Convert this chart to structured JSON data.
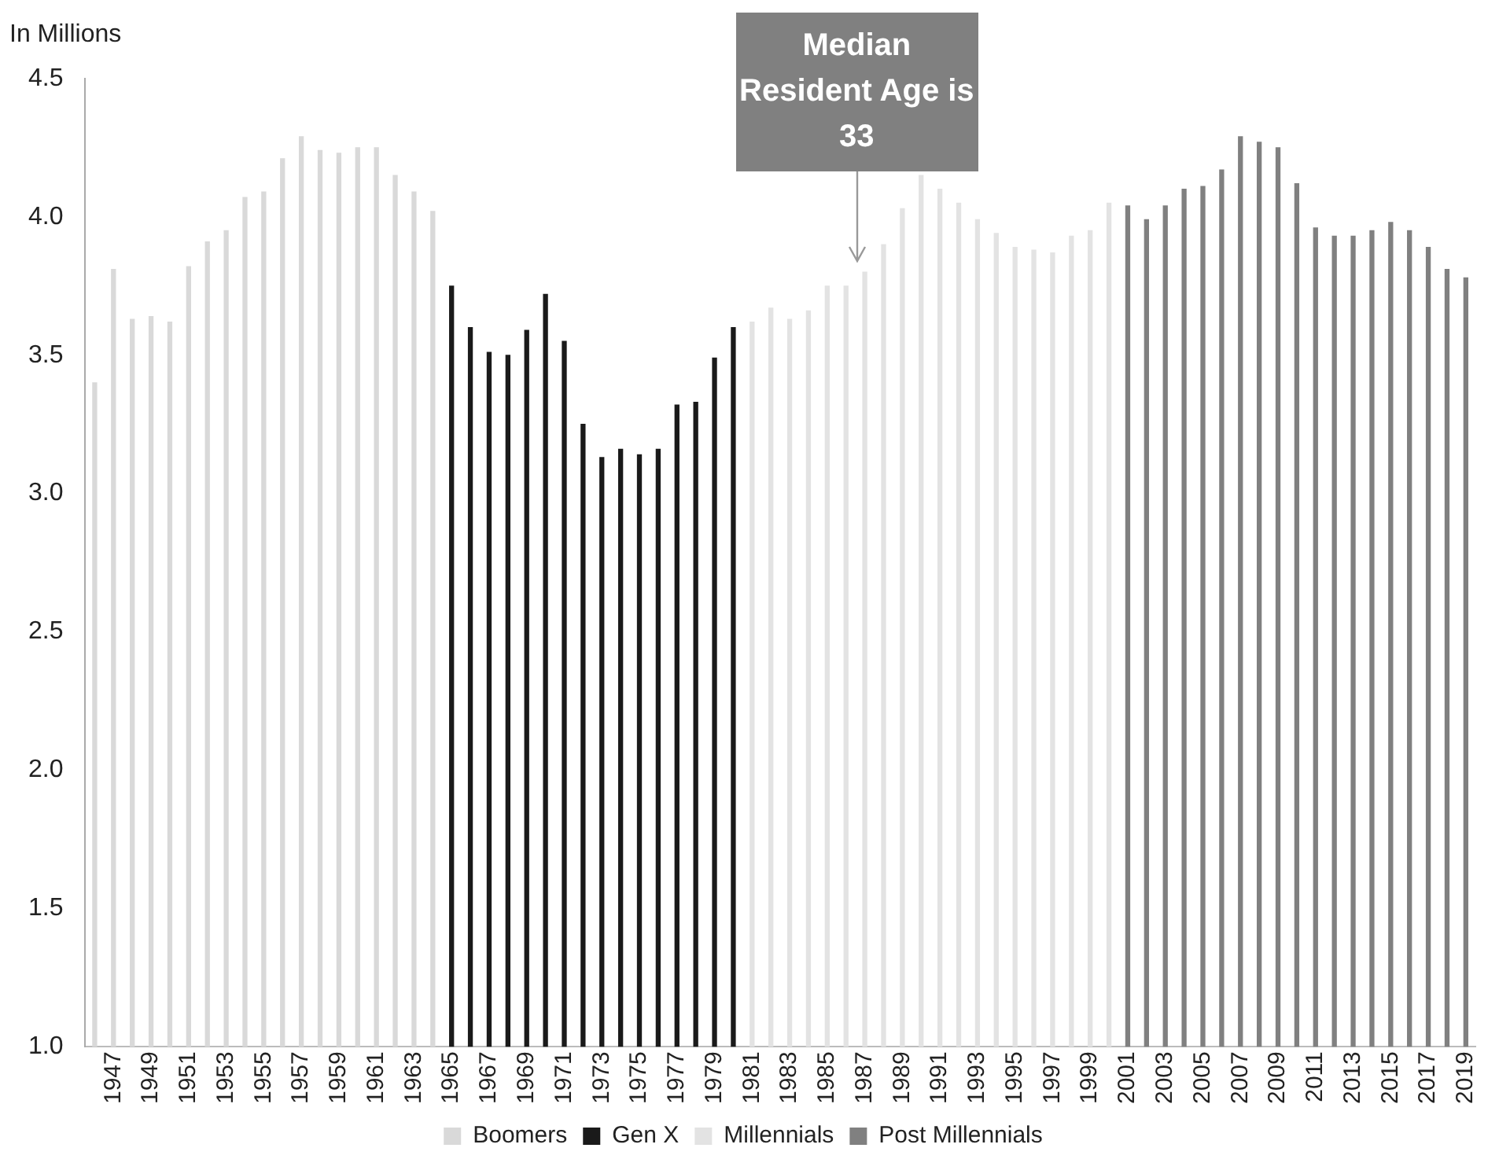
{
  "chart_data": {
    "type": "bar",
    "stacked": true,
    "ylabel": "In Millions",
    "legend": "bottom",
    "grid": false,
    "annotations": [
      "Median Resident Age is 33"
    ],
    "ylim": [
      1.0,
      4.5
    ],
    "yticks": [
      {
        "value": 1,
        "label": "1.0"
      },
      {
        "value": 1.5,
        "label": "1.5"
      },
      {
        "value": 2,
        "label": "2.0"
      },
      {
        "value": 2.5,
        "label": "2.5"
      },
      {
        "value": 3,
        "label": "3.0"
      },
      {
        "value": 3.5,
        "label": "3.5"
      },
      {
        "value": 4,
        "label": "4.0"
      },
      {
        "value": 4.5,
        "label": "4.5"
      }
    ],
    "categories": [
      null,
      "1947",
      null,
      "1949",
      null,
      "1951",
      null,
      "1953",
      null,
      "1955",
      null,
      "1957",
      null,
      "1959",
      null,
      "1961",
      null,
      "1963",
      null,
      "1965",
      null,
      "1967",
      null,
      "1969",
      null,
      "1971",
      null,
      "1973",
      null,
      "1975",
      null,
      "1977",
      null,
      "1979",
      null,
      "1981",
      null,
      "1983",
      null,
      "1985",
      null,
      "1987",
      null,
      "1989",
      null,
      "1991",
      null,
      "1993",
      null,
      "1995",
      null,
      "1997",
      null,
      "1999",
      null,
      "2001",
      null,
      "2003",
      null,
      "2005",
      null,
      "2007",
      null,
      "2009",
      null,
      "2011",
      null,
      "2013",
      null,
      "2015",
      null,
      "2017",
      null,
      "2019"
    ],
    "series": [
      {
        "name": "Boomers",
        "color": "#d9d9d9",
        "values": [
          3.4,
          3.81,
          3.63,
          3.64,
          3.62,
          3.82,
          3.91,
          3.95,
          4.07,
          4.09,
          4.21,
          4.29,
          4.24,
          4.23,
          4.25,
          4.25,
          4.15,
          4.09,
          4.02,
          null,
          null,
          null,
          null,
          null,
          null,
          null,
          null,
          null,
          null,
          null,
          null,
          null,
          null,
          null,
          null,
          null,
          null,
          null,
          null,
          null,
          null,
          null,
          null,
          null,
          null,
          null,
          null,
          null,
          null,
          null,
          null,
          null,
          null,
          null,
          null,
          null,
          null,
          null,
          null,
          null,
          null,
          null,
          null,
          null,
          null,
          null,
          null,
          null,
          null,
          null,
          null,
          null,
          null,
          null
        ]
      },
      {
        "name": "Gen X",
        "color": "#1a1a1a",
        "values": [
          null,
          null,
          null,
          null,
          null,
          null,
          null,
          null,
          null,
          null,
          null,
          null,
          null,
          null,
          null,
          null,
          null,
          null,
          null,
          3.75,
          3.6,
          3.51,
          3.5,
          3.59,
          3.72,
          3.55,
          3.25,
          3.13,
          3.16,
          3.14,
          3.16,
          3.32,
          3.33,
          3.49,
          3.6,
          null,
          null,
          null,
          null,
          null,
          null,
          null,
          null,
          null,
          null,
          null,
          null,
          null,
          null,
          null,
          null,
          null,
          null,
          null,
          null,
          null,
          null,
          null,
          null,
          null,
          null,
          null,
          null,
          null,
          null,
          null,
          null,
          null,
          null,
          null,
          null,
          null,
          null,
          null
        ]
      },
      {
        "name": "Millennials",
        "color": "#e3e3e3",
        "values": [
          null,
          null,
          null,
          null,
          null,
          null,
          null,
          null,
          null,
          null,
          null,
          null,
          null,
          null,
          null,
          null,
          null,
          null,
          null,
          null,
          null,
          null,
          null,
          null,
          null,
          null,
          null,
          null,
          null,
          null,
          null,
          null,
          null,
          null,
          null,
          3.62,
          3.67,
          3.63,
          3.66,
          3.75,
          3.75,
          3.8,
          3.9,
          4.03,
          4.15,
          4.1,
          4.05,
          3.99,
          3.94,
          3.89,
          3.88,
          3.87,
          3.93,
          3.95,
          4.05,
          null,
          null,
          null,
          null,
          null,
          null,
          null,
          null,
          null,
          null,
          null,
          null,
          null,
          null,
          null,
          null,
          null,
          null,
          null
        ]
      },
      {
        "name": "Post Millennials",
        "color": "#808080",
        "values": [
          null,
          null,
          null,
          null,
          null,
          null,
          null,
          null,
          null,
          null,
          null,
          null,
          null,
          null,
          null,
          null,
          null,
          null,
          null,
          null,
          null,
          null,
          null,
          null,
          null,
          null,
          null,
          null,
          null,
          null,
          null,
          null,
          null,
          null,
          null,
          null,
          null,
          null,
          null,
          null,
          null,
          null,
          null,
          null,
          null,
          null,
          null,
          null,
          null,
          null,
          null,
          null,
          null,
          null,
          null,
          4.04,
          3.99,
          4.04,
          4.1,
          4.11,
          4.17,
          4.29,
          4.27,
          4.25,
          4.12,
          3.96,
          3.93,
          3.93,
          3.95,
          3.98,
          3.95,
          3.89,
          3.81,
          3.78
        ]
      }
    ]
  }
}
